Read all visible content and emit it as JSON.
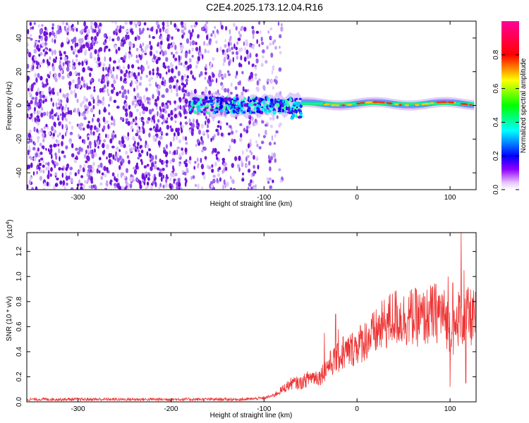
{
  "title": "C2E4.2025.173.12.04.R16",
  "colors": {
    "snr_line": "#ee3333",
    "density_purple": "#7a1fe0",
    "colorbar_stops": [
      "#ffffff",
      "#ff00ff",
      "#0000ff",
      "#00ffff",
      "#00ff00",
      "#ffff00",
      "#ff0000",
      "#ff00aa"
    ]
  },
  "chart_data": [
    {
      "type": "heatmap",
      "xlabel": "Height of straight line (km)",
      "ylabel": "Frequency (Hz)",
      "xlim": [
        -355,
        128
      ],
      "ylim": [
        -50,
        50
      ],
      "xticks": [
        -300,
        -200,
        -100,
        0,
        100
      ],
      "yticks": [
        -40,
        -20,
        0,
        20,
        40
      ],
      "grid": false,
      "colorbar": {
        "label": "Normalized spectral amplitude",
        "range": [
          0.0,
          1.0
        ],
        "ticks": [
          "0.0",
          "0.2",
          "0.4",
          "0.6",
          "0.8"
        ],
        "tick_values": [
          0.0,
          0.2,
          0.4,
          0.6,
          0.8
        ]
      },
      "regions": [
        {
          "x": [
            -355,
            -180
          ],
          "freq": [
            -50,
            50
          ],
          "amplitude": 0.1
        },
        {
          "x": [
            -180,
            -105
          ],
          "freq": [
            -50,
            50
          ],
          "amplitude": 0.07
        },
        {
          "x": [
            -105,
            -80
          ],
          "freq": [
            -50,
            50
          ],
          "amplitude": 0.03
        },
        {
          "x": [
            -180,
            -60
          ],
          "freq": [
            -5,
            6
          ],
          "amplitude": 0.35
        },
        {
          "x": [
            -60,
            128
          ],
          "freq": [
            -2,
            3
          ],
          "amplitude": 0.6
        }
      ]
    },
    {
      "type": "line",
      "xlabel": "Height of straight line (km)",
      "ylabel": "SNR (10 * v/v)",
      "y_multiplier_label": "(x10",
      "y_multiplier_exp": "4",
      "y_multiplier_close": ")",
      "xlim": [
        -355,
        128
      ],
      "ylim": [
        0,
        1.35
      ],
      "xticks": [
        -300,
        -200,
        -100,
        0,
        100
      ],
      "yticks": [
        "0.0",
        "0.2",
        "0.4",
        "0.6",
        "0.8",
        "1.0",
        "1.2"
      ],
      "ytick_values": [
        0.0,
        0.2,
        0.4,
        0.6,
        0.8,
        1.0,
        1.2
      ],
      "grid": false,
      "series": [
        {
          "x": [
            -355,
            -300,
            -250,
            -200,
            -150,
            -120,
            -100,
            -90,
            -80,
            -70,
            -60,
            -50,
            -40,
            -30,
            -20,
            -10,
            0,
            10,
            20,
            30,
            40,
            50,
            60,
            70,
            80,
            90,
            100,
            105,
            110,
            115,
            120,
            128
          ],
          "values": [
            0.02,
            0.02,
            0.02,
            0.02,
            0.02,
            0.02,
            0.03,
            0.05,
            0.1,
            0.15,
            0.15,
            0.2,
            0.2,
            0.3,
            0.35,
            0.4,
            0.45,
            0.5,
            0.55,
            0.62,
            0.68,
            0.66,
            0.68,
            0.66,
            0.7,
            0.72,
            0.6,
            0.55,
            0.7,
            0.65,
            0.68,
            0.66
          ],
          "spikes": [
            {
              "x": -35,
              "value": 0.55
            },
            {
              "x": -23,
              "value": 0.7
            },
            {
              "x": -20,
              "value": 0.58
            },
            {
              "x": -15,
              "value": 0.52
            },
            {
              "x": 98,
              "value": 1.0
            },
            {
              "x": 100,
              "value": 0.12
            },
            {
              "x": 103,
              "value": 0.95
            },
            {
              "x": 112,
              "value": 1.35
            },
            {
              "x": 115,
              "value": 1.05
            },
            {
              "x": 117,
              "value": 0.15
            },
            {
              "x": 119,
              "value": 0.9
            }
          ]
        }
      ]
    }
  ]
}
